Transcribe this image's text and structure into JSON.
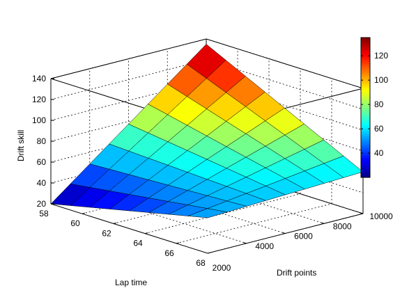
{
  "chart_data": {
    "type": "surface",
    "title": "",
    "xlabel": "Drift points",
    "ylabel": "Lap time",
    "zlabel": "Drift skill",
    "x": [
      2000,
      3000,
      4000,
      5000,
      6000,
      7000,
      8000,
      9000,
      10000
    ],
    "y": [
      58,
      59.25,
      60.5,
      61.75,
      63,
      64.25,
      65.5,
      66.75,
      68
    ],
    "xlim": [
      2000,
      10000
    ],
    "ylim": [
      58,
      68
    ],
    "zlim": [
      20,
      140
    ],
    "clim": [
      20,
      135
    ],
    "x_ticks": [
      "4000",
      "6000",
      "8000",
      "10000"
    ],
    "x_tick_values": [
      4000,
      6000,
      8000,
      10000
    ],
    "x_first_tick": "2000",
    "y_ticks": [
      "58",
      "60",
      "62",
      "64",
      "66",
      "68"
    ],
    "y_tick_values": [
      58,
      60,
      62,
      64,
      66,
      68
    ],
    "z_ticks": [
      "20",
      "40",
      "60",
      "80",
      "100",
      "120",
      "140"
    ],
    "z_tick_values": [
      20,
      40,
      60,
      80,
      100,
      120,
      140
    ],
    "colorbar_ticks": [
      "40",
      "60",
      "80",
      "100",
      "120"
    ],
    "colorbar_tick_values": [
      40,
      60,
      80,
      100,
      120
    ],
    "corner_values": {
      "x2000_y58": 20,
      "x10000_y58": 135,
      "x2000_y68": 54,
      "x10000_y68": 60
    },
    "colormap": "jet",
    "grid": true
  }
}
